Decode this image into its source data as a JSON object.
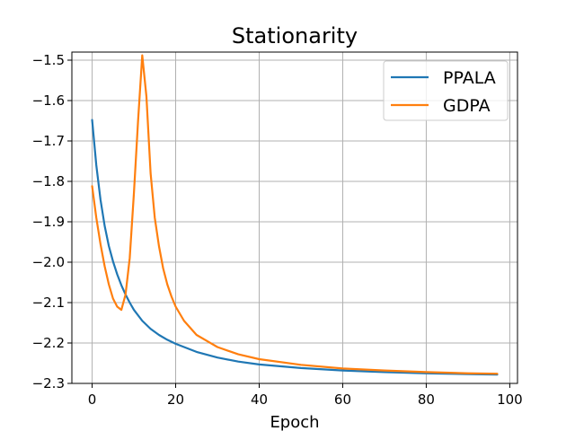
{
  "chart_data": {
    "type": "line",
    "title": "Stationarity",
    "xlabel": "Epoch",
    "ylabel": "",
    "xlim": [
      -4.85,
      101.85
    ],
    "ylim": [
      -2.3,
      -1.48
    ],
    "xticks": [
      0,
      20,
      40,
      60,
      80,
      100
    ],
    "yticks": [
      -2.3,
      -2.2,
      -2.1,
      -2.0,
      -1.9,
      -1.8,
      -1.7,
      -1.6,
      -1.5
    ],
    "xtick_labels": [
      "0",
      "20",
      "40",
      "60",
      "80",
      "100"
    ],
    "ytick_labels": [
      "−2.3",
      "−2.2",
      "−2.1",
      "−2.0",
      "−1.9",
      "−1.8",
      "−1.7",
      "−1.6",
      "−1.5"
    ],
    "grid": true,
    "legend_position": "top-right",
    "series": [
      {
        "name": "PPALA",
        "color": "#1f77b4",
        "x": [
          0,
          1,
          2,
          3,
          4,
          5,
          6,
          7,
          8,
          9,
          10,
          12,
          14,
          16,
          18,
          20,
          25,
          30,
          35,
          40,
          50,
          60,
          70,
          80,
          90,
          97
        ],
        "y": [
          -1.648,
          -1.76,
          -1.845,
          -1.91,
          -1.96,
          -1.998,
          -2.03,
          -2.057,
          -2.08,
          -2.1,
          -2.118,
          -2.145,
          -2.165,
          -2.18,
          -2.192,
          -2.202,
          -2.222,
          -2.236,
          -2.246,
          -2.253,
          -2.262,
          -2.268,
          -2.272,
          -2.275,
          -2.277,
          -2.278
        ]
      },
      {
        "name": "GDPA",
        "color": "#ff7f0e",
        "x": [
          0,
          1,
          2,
          3,
          4,
          5,
          6,
          7,
          8,
          9,
          10,
          11,
          12,
          13,
          14,
          15,
          16,
          17,
          18,
          19,
          20,
          22,
          25,
          30,
          35,
          40,
          50,
          60,
          70,
          80,
          90,
          97
        ],
        "y": [
          -1.812,
          -1.89,
          -1.955,
          -2.01,
          -2.055,
          -2.09,
          -2.11,
          -2.118,
          -2.08,
          -1.99,
          -1.83,
          -1.65,
          -1.488,
          -1.59,
          -1.78,
          -1.89,
          -1.96,
          -2.015,
          -2.055,
          -2.085,
          -2.11,
          -2.145,
          -2.18,
          -2.21,
          -2.228,
          -2.24,
          -2.254,
          -2.263,
          -2.268,
          -2.272,
          -2.275,
          -2.276
        ]
      }
    ]
  }
}
